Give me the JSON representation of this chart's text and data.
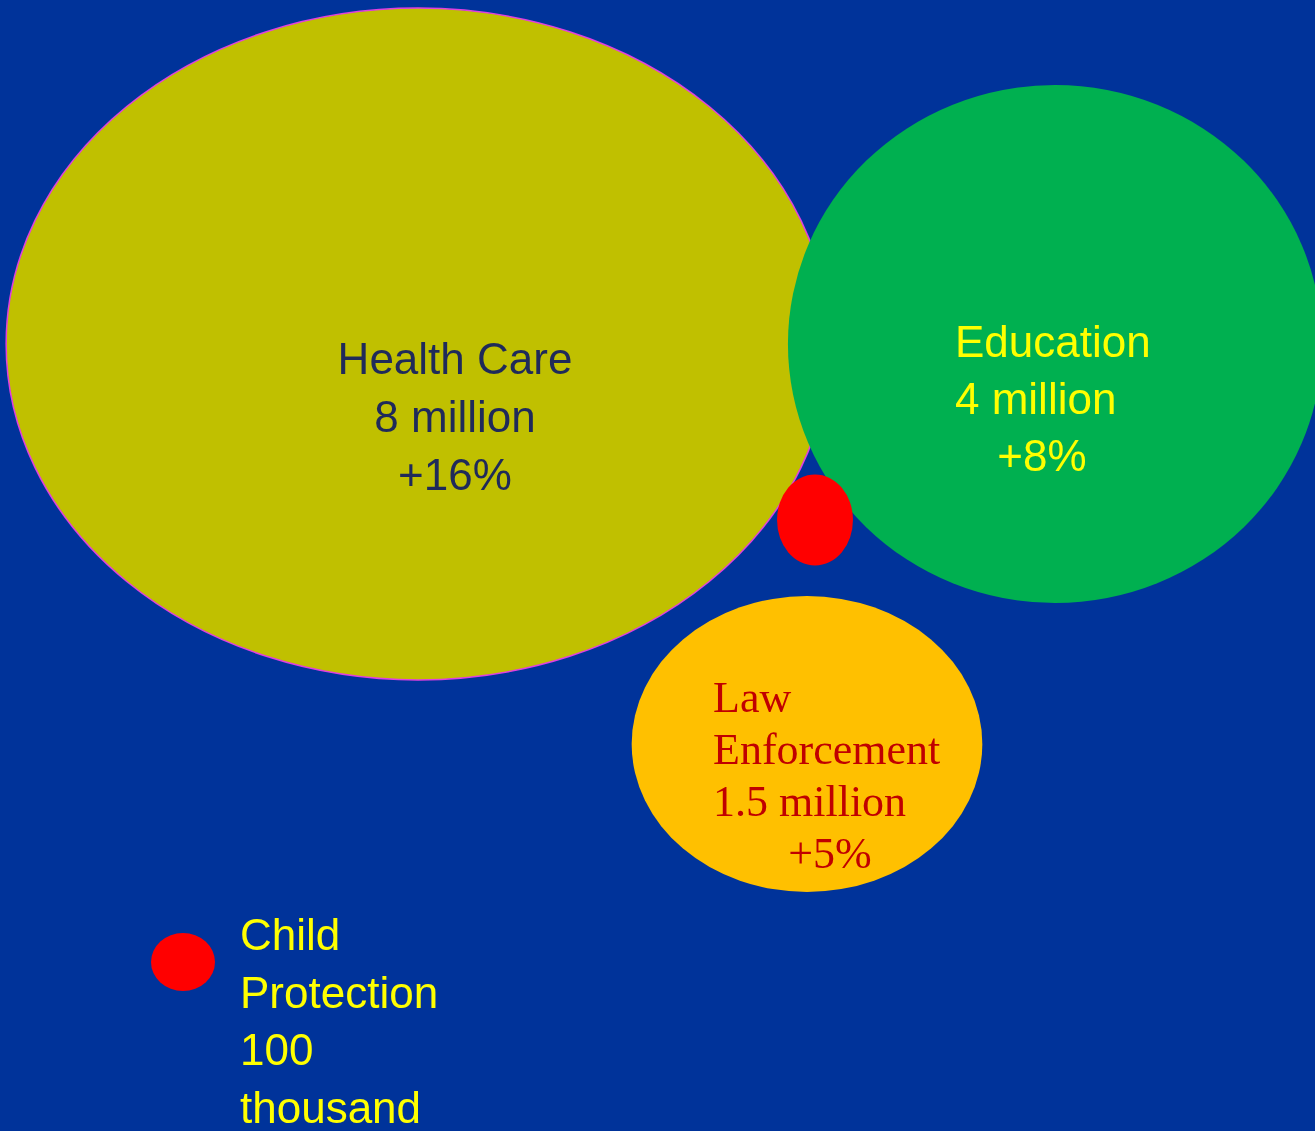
{
  "chart_data": {
    "type": "other",
    "categories": [
      "Health Care",
      "Education",
      "Law Enforcement",
      "Child Protection"
    ],
    "values": [
      8000000,
      4000000,
      1500000,
      100000
    ],
    "value_labels": [
      "8 million",
      "4 million",
      "1.5 million",
      "100 thousand"
    ],
    "colors": [
      "#c0c000",
      "#00b050",
      "#ffc000",
      "#ff0000"
    ],
    "annotations": [
      {
        "text": "+16%",
        "x": "Health Care"
      },
      {
        "text": "+8%",
        "x": "Education"
      },
      {
        "text": "+5%",
        "x": "Law Enforcement"
      }
    ]
  }
}
